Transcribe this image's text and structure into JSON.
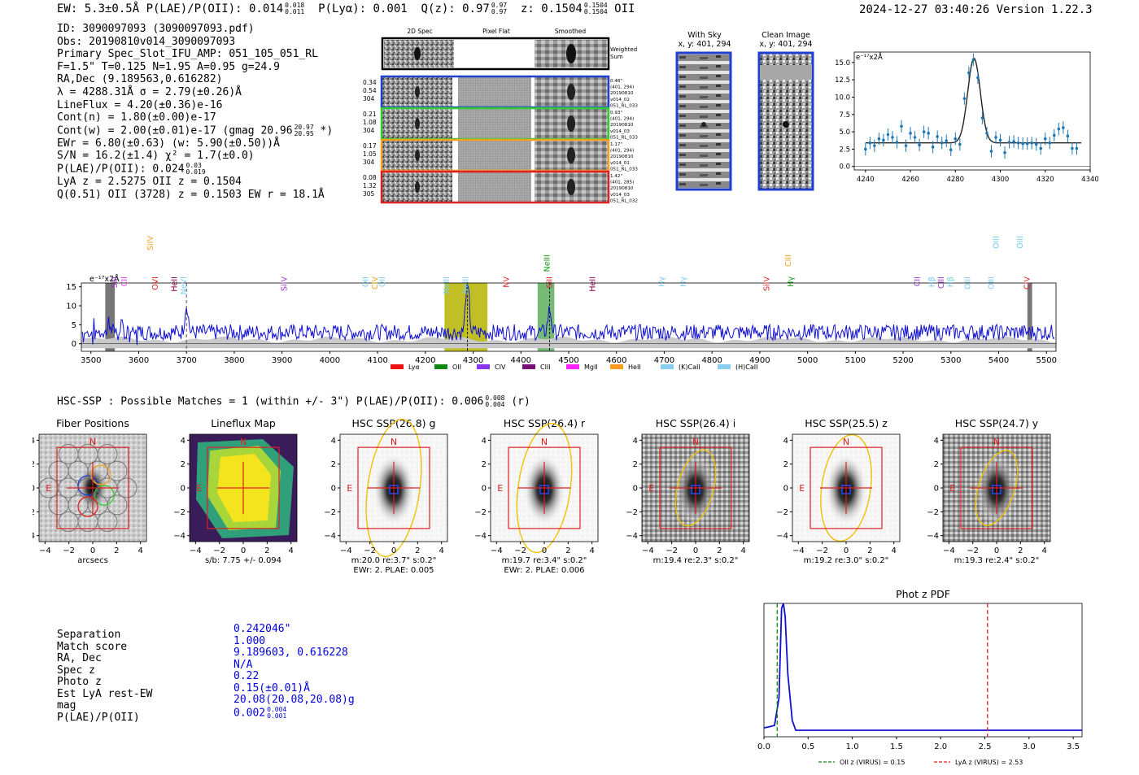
{
  "header": {
    "left": "EW: 5.3±0.5Å  P(LAE)/P(OII): 0.014",
    "plae_hi": "0.018",
    "plae_lo": "0.011",
    "plya": "P(Lyα): 0.001",
    "qz": "Q(z): 0.97",
    "qz_hi": "0.97",
    "qz_lo": "0.97",
    "z": "z: 0.1504",
    "z_hi": "0.1504",
    "z_lo": "0.1504",
    "line": "OII",
    "right": "2024-12-27 03:40:26  Version 1.22.3"
  },
  "info": [
    "ID: 3090097093 (3090097093.pdf)",
    "Obs: 20190810v014_3090097093",
    "Primary Spec_Slot_IFU_AMP: 051_105_051_RL",
    "F=1.5\"  T=0.125  N=1.95  A=0.95  g=24.9",
    "RA,Dec (9.189563,0.616282)",
    "λ = 4288.31Å  σ = 2.79(±0.26)Å",
    "LineFlux = 4.20(±0.36)e-16",
    "Cont(n) = 1.80(±0.00)e-17",
    "Cont(w) = 2.00(±0.01)e-17 (gmag 20.96",
    "EWr = 6.80(±0.63) (w: 5.90(±0.50))Å",
    "S/N = 16.2(±1.4)  χ² = 1.7(±0.0)",
    "P(LAE)/P(OII): 0.024",
    "LyA z = 2.5275  OII z = 0.1504",
    "Q(0.51) OII (3728) z = 0.1503  EW r = 18.1Å"
  ],
  "info_extra": {
    "gmag_hi": "20.97",
    "gmag_lo": "20.95",
    "gmag_tail": "*)",
    "plae_hi": "0.03",
    "plae_lo": "0.019"
  },
  "cutouts": {
    "col_headers": [
      "2D Spec",
      "Pixel Flat",
      "Smoothed"
    ],
    "weighted_label": "Weighted Sum",
    "rows": [
      {
        "v1": "0.34",
        "v2": "0.54",
        "v3": "304",
        "d1": "0.48\"",
        "d2": "(401, 294)",
        "d3": "20190810",
        "d4": "v014_02",
        "d5": "051_RL_033",
        "color": "#1f3fd0"
      },
      {
        "v1": "0.21",
        "v2": "1.08",
        "v3": "304",
        "d1": "0.93\"",
        "d2": "(401, 294)",
        "d3": "20190810",
        "d4": "v014_03",
        "d5": "051_RL_033",
        "color": "#33cc33"
      },
      {
        "v1": "0.17",
        "v2": "1.05",
        "v3": "304",
        "d1": "1.17\"",
        "d2": "(401, 294)",
        "d3": "20190810",
        "d4": "v014_01",
        "d5": "051_RL_033",
        "color": "#f5a020"
      },
      {
        "v1": "0.08",
        "v2": "1.32",
        "v3": "305",
        "d1": "1.42\"",
        "d2": "(401, 285)",
        "d3": "20190810",
        "d4": "v014_03",
        "d5": "051_RL_032",
        "color": "#dd2020"
      }
    ]
  },
  "sky": {
    "with_sky": "With Sky",
    "clean": "Clean Image",
    "coords": "x, y: 401, 294"
  },
  "line_fit": {
    "type": "scatter",
    "unit": "e⁻¹⁷x2Å",
    "x": [
      4240,
      4242,
      4244,
      4246,
      4248,
      4250,
      4252,
      4254,
      4256,
      4258,
      4260,
      4262,
      4264,
      4266,
      4268,
      4270,
      4272,
      4274,
      4276,
      4278,
      4280,
      4282,
      4284,
      4286,
      4288,
      4290,
      4292,
      4294,
      4296,
      4298,
      4300,
      4302,
      4304,
      4306,
      4308,
      4310,
      4312,
      4314,
      4316,
      4318,
      4320,
      4322,
      4324,
      4326,
      4328,
      4330,
      4332,
      4334
    ],
    "y": [
      2.5,
      3.4,
      3.0,
      4.0,
      3.8,
      4.6,
      4.2,
      3.5,
      5.8,
      3.0,
      4.8,
      4.2,
      3.1,
      5.0,
      4.8,
      2.8,
      4.3,
      3.4,
      3.7,
      2.4,
      4.0,
      3.2,
      9.8,
      13.5,
      15.4,
      12.8,
      7.0,
      4.8,
      2.2,
      4.2,
      3.8,
      2.0,
      3.5,
      3.6,
      3.4,
      3.3,
      3.3,
      3.4,
      3.2,
      2.6,
      4.0,
      3.4,
      4.5,
      5.4,
      5.6,
      4.4,
      2.6,
      2.6
    ],
    "xlim": [
      4235,
      4340
    ],
    "ylim": [
      -0.5,
      16.5
    ],
    "xticks": [
      4240,
      4260,
      4280,
      4300,
      4320,
      4340
    ],
    "yticks": [
      0.0,
      2.5,
      5.0,
      7.5,
      10.0,
      12.5,
      15.0
    ],
    "fit_center": 4288.31,
    "fit_sigma": 2.79,
    "fit_amp": 12.2,
    "fit_base": 3.4
  },
  "full_spectrum": {
    "type": "line",
    "unit": "e⁻¹⁷x2Å",
    "xlim": [
      3480,
      5520
    ],
    "ylim": [
      -2,
      16
    ],
    "xticks": [
      3500,
      3600,
      3700,
      3800,
      3900,
      4000,
      4100,
      4200,
      4300,
      4400,
      4500,
      4600,
      4700,
      4800,
      4900,
      5000,
      5100,
      5200,
      5300,
      5400,
      5500
    ],
    "yticks": [
      0,
      5,
      10,
      15
    ],
    "spikes": [
      {
        "x": 3540,
        "h": 3.5
      },
      {
        "x": 3700,
        "h": 7.5
      },
      {
        "x": 4288,
        "h": 15.0
      },
      {
        "x": 4460,
        "h": 6.0
      }
    ],
    "highlight_yellow": [
      4240,
      4330
    ],
    "highlight_green": [
      4435,
      4470
    ],
    "gray_bars": [
      3530,
      3550,
      5460,
      5470
    ],
    "line_labels": [
      {
        "text": "SiII",
        "x": 3555,
        "color": "#9933cc",
        "row": 2
      },
      {
        "text": "CII",
        "x": 3575,
        "color": "#ff33ff",
        "row": 2
      },
      {
        "text": "SiIV",
        "x": 3630,
        "color": "#f5a020",
        "row": 0
      },
      {
        "text": "OVI",
        "x": 3640,
        "color": "#dd2020",
        "row": 2
      },
      {
        "text": "HeII",
        "x": 3680,
        "color": "#880044",
        "row": 2
      },
      {
        "text": "NeVI",
        "x": 3700,
        "color": "#77ccee",
        "row": 2
      },
      {
        "text": "SiIV",
        "x": 3910,
        "color": "#9933cc",
        "row": 2
      },
      {
        "text": "OII",
        "x": 4080,
        "color": "#77ccee",
        "row": 2
      },
      {
        "text": "CIV",
        "x": 4100,
        "color": "#f5a020",
        "row": 2
      },
      {
        "text": "OII",
        "x": 4115,
        "color": "#77ccee",
        "row": 2
      },
      {
        "text": "NeIII",
        "x": 4250,
        "color": "#77ccee",
        "row": 2
      },
      {
        "text": "NeIII",
        "x": 4290,
        "color": "#77ccee",
        "row": 2
      },
      {
        "text": "NV",
        "x": 4375,
        "color": "#dd2020",
        "row": 2
      },
      {
        "text": "NeIII",
        "x": 4460,
        "color": "#119911",
        "row": 1
      },
      {
        "text": "SiII",
        "x": 4465,
        "color": "#dd2020",
        "row": 2
      },
      {
        "text": "HeII",
        "x": 4555,
        "color": "#880044",
        "row": 2
      },
      {
        "text": "Hγ",
        "x": 4700,
        "color": "#77ccee",
        "row": 2
      },
      {
        "text": "Hγ",
        "x": 4745,
        "color": "#77ccee",
        "row": 2
      },
      {
        "text": "SiIV",
        "x": 4920,
        "color": "#dd2020",
        "row": 2
      },
      {
        "text": "CIII",
        "x": 4965,
        "color": "#f5a020",
        "row": 1
      },
      {
        "text": "Hγ",
        "x": 4970,
        "color": "#119911",
        "row": 2
      },
      {
        "text": "CII",
        "x": 5235,
        "color": "#9933cc",
        "row": 2
      },
      {
        "text": "Hβ",
        "x": 5265,
        "color": "#77ccee",
        "row": 2
      },
      {
        "text": "CIII",
        "x": 5285,
        "color": "#9933cc",
        "row": 2
      },
      {
        "text": "Hβ",
        "x": 5305,
        "color": "#77ccee",
        "row": 2
      },
      {
        "text": "OIII",
        "x": 5340,
        "color": "#77ccee",
        "row": 2
      },
      {
        "text": "OIII",
        "x": 5390,
        "color": "#77ccee",
        "row": 2
      },
      {
        "text": "OIII",
        "x": 5400,
        "color": "#77ccee",
        "row": 0
      },
      {
        "text": "OIII",
        "x": 5450,
        "color": "#77ccee",
        "row": 0
      },
      {
        "text": "CIV",
        "x": 5465,
        "color": "#dd2020",
        "row": 2
      }
    ],
    "legend": [
      {
        "label": "Lyα",
        "color": "#ee1111"
      },
      {
        "label": "OII",
        "color": "#118811"
      },
      {
        "label": "CIV",
        "color": "#8833ee"
      },
      {
        "label": "CIII",
        "color": "#771177"
      },
      {
        "label": "MgII",
        "color": "#ff22ff"
      },
      {
        "label": "HeII",
        "color": "#ff9922"
      },
      {
        "label": "(K)CaII",
        "color": "#88ccee"
      },
      {
        "label": "(H)CaII",
        "color": "#88ccee"
      }
    ]
  },
  "hsc": {
    "title": "HSC-SSP : Possible Matches = 1 (within +/- 3\")  P(LAE)/P(OII): 0.006",
    "plae_hi": "0.008",
    "plae_lo": "0.004",
    "band": "(r)"
  },
  "panels": [
    {
      "title": "Fiber Positions",
      "xlabel": "arcsecs",
      "xlabel2": "",
      "kind": "fiber"
    },
    {
      "title": "Lineflux Map",
      "xlabel": "s/b: 7.75 +/- 0.094",
      "xlabel2": "",
      "kind": "flux"
    },
    {
      "title": "HSC SSP(26.8) g",
      "xlabel": "m:20.0  re:3.7\"  s:0.2\"",
      "xlabel2": "EWr: 2. PLAE: 0.005",
      "kind": "img"
    },
    {
      "title": "HSC SSP(26.4) r",
      "xlabel": "m:19.7  re:3.4\"  s:0.2\"",
      "xlabel2": "EWr: 2. PLAE: 0.006",
      "kind": "img"
    },
    {
      "title": "HSC SSP(26.4) i",
      "xlabel": "m:19.4  re:2.3\"  s:0.2\"",
      "xlabel2": "",
      "kind": "img"
    },
    {
      "title": "HSC SSP(25.5) z",
      "xlabel": "m:19.2  re:3.0\"  s:0.2\"",
      "xlabel2": "",
      "kind": "img"
    },
    {
      "title": "HSC SSP(24.7) y",
      "xlabel": "m:19.3  re:2.4\"  s:0.2\"",
      "xlabel2": "",
      "kind": "img"
    }
  ],
  "panel_axis": {
    "ticks": [
      "4",
      "2",
      "0",
      "−2",
      "−4"
    ],
    "xticks": [
      "−4",
      "−2",
      "0",
      "2",
      "4"
    ],
    "N": "N",
    "E": "E"
  },
  "match": {
    "keys": [
      "Separation",
      "Match score",
      "RA, Dec",
      "Spec z",
      "Photo z",
      "Est LyA rest-EW",
      "mag",
      "P(LAE)/P(OII)"
    ],
    "values": [
      "0.242046\"",
      "1.000",
      "9.189603, 0.616228",
      "N/A",
      "0.22",
      "0.15(±0.01)Å",
      "20.08(20.08,20.08)g",
      "0.002"
    ],
    "plae_hi": "0.004",
    "plae_lo": "0.001"
  },
  "photz": {
    "type": "line",
    "title": "Phot z PDF",
    "xlim": [
      0.0,
      3.6
    ],
    "xticks": [
      "0.0",
      "0.5",
      "1.0",
      "1.5",
      "2.0",
      "2.5",
      "3.0",
      "3.5"
    ],
    "oii_z": 0.15,
    "lya_z": 2.53,
    "peak_z": 0.22,
    "legend_oii": "OII z (VIRUS) = 0.15",
    "legend_lya": "LyA z (VIRUS) = 2.53"
  }
}
